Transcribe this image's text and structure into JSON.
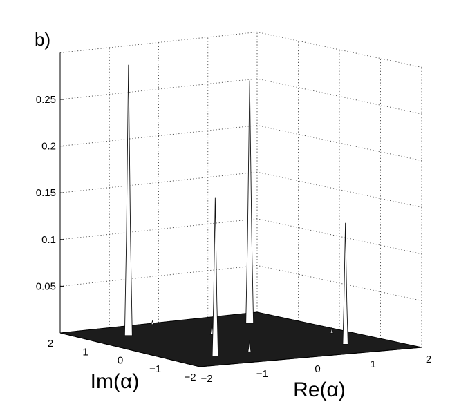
{
  "panel_label": "b)",
  "chart_data": {
    "type": "surface",
    "title": "",
    "xlabel": "Re(α)",
    "ylabel": "Im(α)",
    "zlabel": "",
    "xlim": [
      -2,
      2
    ],
    "ylim": [
      -2,
      2
    ],
    "zlim": [
      0,
      0.3
    ],
    "grid": true,
    "x_ticks": [
      "−2",
      "−1",
      "0",
      "1",
      "2"
    ],
    "y_ticks": [
      "−2",
      "−1",
      "0",
      "1",
      "2"
    ],
    "z_ticks": [
      "0.05",
      "0.1",
      "0.15",
      "0.2",
      "0.25"
    ],
    "z_tick_values": [
      0.05,
      0.1,
      0.15,
      0.2,
      0.25
    ],
    "x_tick_values": [
      -2,
      -1,
      0,
      1,
      2
    ],
    "y_tick_values": [
      -2,
      -1,
      0,
      1,
      2
    ],
    "peaks": [
      {
        "x": -1.2,
        "y": 1.2,
        "z": 0.29
      },
      {
        "x": 1.2,
        "y": 1.2,
        "z": 0.26
      },
      {
        "x": -1.2,
        "y": -1.2,
        "z": 0.17
      },
      {
        "x": 1.2,
        "y": -1.2,
        "z": 0.13
      },
      {
        "x": 0.0,
        "y": 0.6,
        "z": 0.015
      },
      {
        "x": -0.5,
        "y": -1.1,
        "z": 0.012
      },
      {
        "x": 1.7,
        "y": -0.2,
        "z": 0.006
      },
      {
        "x": -0.2,
        "y": 1.9,
        "z": 0.004
      },
      {
        "x": 0.4,
        "y": 1.0,
        "z": 0.003
      }
    ]
  }
}
